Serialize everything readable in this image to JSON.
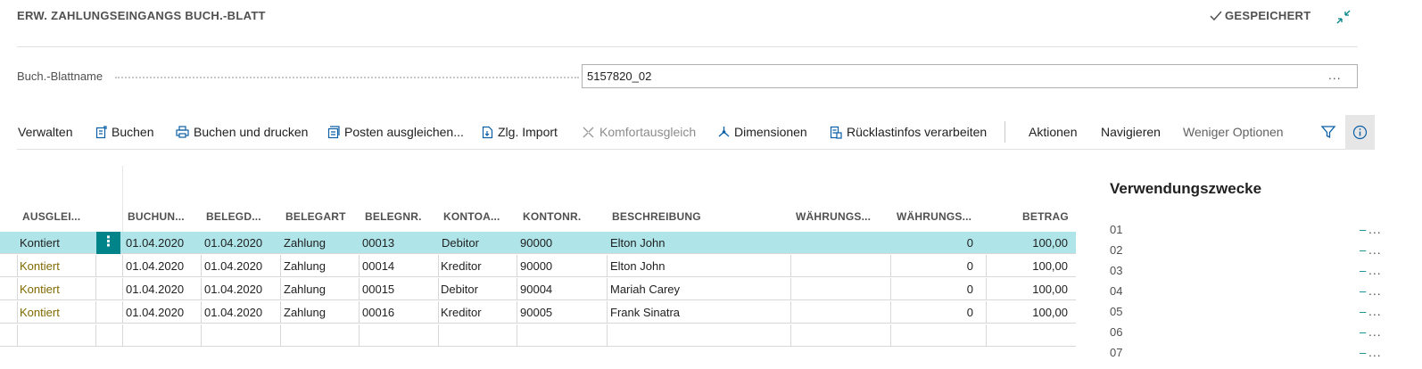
{
  "header": {
    "title": "ERW. ZAHLUNGSEINGANGS BUCH.-BLATT",
    "saved_label": "GESPEICHERT"
  },
  "batch_field": {
    "label": "Buch.-Blattname",
    "value": "5157820_02",
    "more": "..."
  },
  "actions": {
    "verwalten": "Verwalten",
    "buchen": "Buchen",
    "buchen_drucken": "Buchen und drucken",
    "posten_ausgleichen": "Posten ausgleichen...",
    "zlg_import": "Zlg. Import",
    "komfortausgleich": "Komfortausgleich",
    "dimensionen": "Dimensionen",
    "ruecklast": "Rücklastinfos verarbeiten",
    "aktionen": "Aktionen",
    "navigieren": "Navigieren",
    "weniger": "Weniger Optionen"
  },
  "table": {
    "columns": [
      "AUSGLEI...",
      "BUCHUN...",
      "BELEGD...",
      "BELEGART",
      "BELEGNR.",
      "KONTOA...",
      "KONTONR.",
      "BESCHREIBUNG",
      "WÄHRUNGS...",
      "WÄHRUNGS...",
      "BETRAG"
    ],
    "rows": [
      {
        "ausgleich": "Kontiert",
        "buchung": "01.04.2020",
        "belegdatum": "01.04.2020",
        "belegart": "Zahlung",
        "belegnr": "00013",
        "kontoart": "Debitor",
        "kontonr": "90000",
        "beschreibung": "Elton John",
        "waehrung1": "",
        "waehrung2": "0",
        "betrag": "100,00"
      },
      {
        "ausgleich": "Kontiert",
        "buchung": "01.04.2020",
        "belegdatum": "01.04.2020",
        "belegart": "Zahlung",
        "belegnr": "00014",
        "kontoart": "Kreditor",
        "kontonr": "90000",
        "beschreibung": "Elton John",
        "waehrung1": "",
        "waehrung2": "0",
        "betrag": "100,00"
      },
      {
        "ausgleich": "Kontiert",
        "buchung": "01.04.2020",
        "belegdatum": "01.04.2020",
        "belegart": "Zahlung",
        "belegnr": "00015",
        "kontoart": "Debitor",
        "kontonr": "90004",
        "beschreibung": "Mariah Carey",
        "waehrung1": "",
        "waehrung2": "0",
        "betrag": "100,00"
      },
      {
        "ausgleich": "Kontiert",
        "buchung": "01.04.2020",
        "belegdatum": "01.04.2020",
        "belegart": "Zahlung",
        "belegnr": "00016",
        "kontoart": "Kreditor",
        "kontonr": "90005",
        "beschreibung": "Frank Sinatra",
        "waehrung1": "",
        "waehrung2": "0",
        "betrag": "100,00"
      }
    ],
    "row_menu": "⋮"
  },
  "factbox": {
    "title": "Verwendungszwecke",
    "items": [
      "01",
      "02",
      "03",
      "04",
      "05",
      "06",
      "07"
    ],
    "more": "..."
  },
  "colors": {
    "accent": "#008489",
    "selected_row": "#afe5e9",
    "link": "#806a00"
  }
}
